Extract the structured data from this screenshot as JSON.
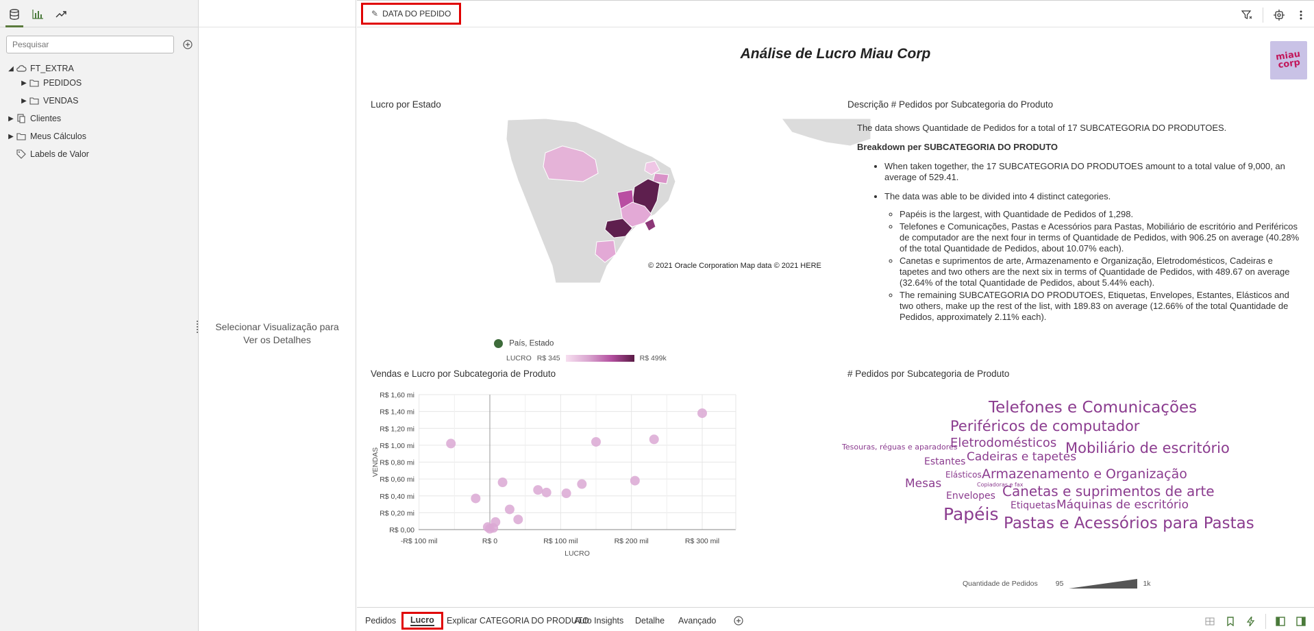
{
  "left_panel": {
    "tabs": [
      {
        "name": "data-tab",
        "icon": "database-icon"
      },
      {
        "name": "visualizations-tab",
        "icon": "bar-chart-icon"
      },
      {
        "name": "analytics-tab",
        "icon": "trend-icon"
      }
    ],
    "search_placeholder": "Pesquisar",
    "tree": [
      {
        "label": "FT_EXTRA",
        "icon": "cloud-db-icon",
        "caret": "open"
      },
      {
        "label": "PEDIDOS",
        "icon": "folder-icon",
        "caret": "closed"
      },
      {
        "label": "VENDAS",
        "icon": "folder-icon",
        "caret": "closed"
      },
      {
        "label": "Clientes",
        "icon": "dataset-icon",
        "caret": "closed"
      },
      {
        "label": "Meus Cálculos",
        "icon": "folder-icon",
        "caret": "closed"
      },
      {
        "label": "Labels de Valor",
        "icon": "tag-icon",
        "caret": "none"
      }
    ]
  },
  "details_panel": {
    "hint": "Selecionar Visualização para Ver os Detalhes"
  },
  "topbar": {
    "filter_label": "DATA DO PEDIDO"
  },
  "canvas": {
    "title": "Análise de Lucro Miau Corp",
    "logo_text": "miau corp"
  },
  "map": {
    "title": "Lucro por Estado",
    "copyright": "© 2021 Oracle Corporation   Map data © 2021 HERE",
    "legend_label": "País, Estado",
    "lucro_label": "LUCRO",
    "min": "R$ 345",
    "max": "R$ 499k"
  },
  "description": {
    "title": "Descrição # Pedidos por Subcategoria do Produto",
    "intro": "The data shows Quantidade de Pedidos for a total of 17 SUBCATEGORIA DO PRODUTOES.",
    "breakdown": "Breakdown per SUBCATEGORIA DO PRODUTO",
    "bullet1": "When taken together, the 17 SUBCATEGORIA DO PRODUTOES amount to a total value of 9,000, an average of 529.41.",
    "bullet2": "The data was able to be divided into 4 distinct categories.",
    "sub1": "Papéis is the largest, with Quantidade de Pedidos of 1,298.",
    "sub2": "Telefones e Comunicações, Pastas e Acessórios para Pastas, Mobiliário de escritório and Periféricos de computador are the next four in terms of Quantidade de Pedidos, with 906.25 on average (40.28% of the total Quantidade de Pedidos, about 10.07% each).",
    "sub3": "Canetas e suprimentos de arte, Armazenamento e Organização, Eletrodomésticos, Cadeiras e tapetes and two others are the next six in terms of Quantidade de Pedidos, with 489.67 on average (32.64% of the total Quantidade de Pedidos, about 5.44% each).",
    "sub4": "The remaining SUBCATEGORIA DO PRODUTOES, Etiquetas, Envelopes, Estantes, Elásticos and two others, make up the rest of the list, with 189.83 on average (12.66% of the total Quantidade de Pedidos, approximately 2.11% each)."
  },
  "scatter": {
    "title": "Vendas e Lucro por Subcategoria de Produto"
  },
  "chart_data": {
    "type": "scatter",
    "title": "Vendas e Lucro por Subcategoria de Produto",
    "xlabel": "LUCRO",
    "ylabel": "VENDAS",
    "x_ticks": [
      "-R$ 100 mil",
      "R$ 0",
      "R$ 100 mil",
      "R$ 200 mil",
      "R$ 300 mil"
    ],
    "y_ticks": [
      "R$ 0,00",
      "R$ 0,20 mi",
      "R$ 0,40 mi",
      "R$ 0,60 mi",
      "R$ 0,80 mi",
      "R$ 1,00 mi",
      "R$ 1,20 mi",
      "R$ 1,40 mi",
      "R$ 1,60 mi"
    ],
    "xlim": [
      -100,
      350
    ],
    "ylim": [
      0,
      1.6
    ],
    "grid": true,
    "point_color": "#dba8d4",
    "points": [
      {
        "x": -55,
        "y": 1.02
      },
      {
        "x": -20,
        "y": 0.37
      },
      {
        "x": -3,
        "y": 0.03
      },
      {
        "x": 0,
        "y": 0.01
      },
      {
        "x": 5,
        "y": 0.02
      },
      {
        "x": 8,
        "y": 0.09
      },
      {
        "x": 18,
        "y": 0.56
      },
      {
        "x": 28,
        "y": 0.24
      },
      {
        "x": 40,
        "y": 0.12
      },
      {
        "x": 68,
        "y": 0.47
      },
      {
        "x": 80,
        "y": 0.44
      },
      {
        "x": 108,
        "y": 0.43
      },
      {
        "x": 130,
        "y": 0.54
      },
      {
        "x": 150,
        "y": 1.04
      },
      {
        "x": 205,
        "y": 0.58
      },
      {
        "x": 232,
        "y": 1.07
      },
      {
        "x": 300,
        "y": 1.38
      }
    ]
  },
  "word_cloud": {
    "title": "# Pedidos por Subcategoria de Produto",
    "legend_label": "Quantidade de Pedidos",
    "legend_min": "95",
    "legend_max": "1k",
    "words": [
      {
        "text": "Telefones e Comunicações",
        "size": 23
      },
      {
        "text": "Periféricos de computador",
        "size": 21
      },
      {
        "text": "Eletrodomésticos",
        "size": 18
      },
      {
        "text": "Mobiliário de escritório",
        "size": 21
      },
      {
        "text": "Tesouras, réguas e aparadores",
        "size": 11
      },
      {
        "text": "Cadeiras e tapetes",
        "size": 17
      },
      {
        "text": "Estantes",
        "size": 14
      },
      {
        "text": "Armazenamento e Organização",
        "size": 19
      },
      {
        "text": "Elásticos",
        "size": 12
      },
      {
        "text": "Mesas",
        "size": 17
      },
      {
        "text": "Copiadoras e fax",
        "size": 8
      },
      {
        "text": "Canetas e suprimentos de arte",
        "size": 20
      },
      {
        "text": "Envelopes",
        "size": 14
      },
      {
        "text": "Etiquetas",
        "size": 14
      },
      {
        "text": "Máquinas de escritório",
        "size": 17
      },
      {
        "text": "Papéis",
        "size": 25
      },
      {
        "text": "Pastas e Acessórios para Pastas",
        "size": 23
      }
    ]
  },
  "bottom_tabs": [
    {
      "label": "Pedidos",
      "active": false
    },
    {
      "label": "Lucro",
      "active": true
    },
    {
      "label": "Explicar CATEGORIA DO PRODUTO",
      "active": false
    },
    {
      "label": "Auto Insights",
      "active": false
    },
    {
      "label": "Detalhe",
      "active": false
    },
    {
      "label": "Avançado",
      "active": false
    }
  ]
}
